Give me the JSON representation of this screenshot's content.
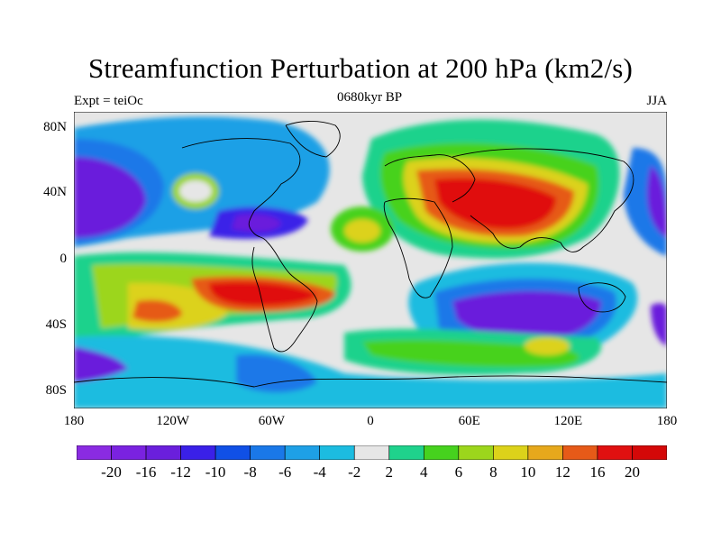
{
  "title": "Streamfunction Perturbation at 200 hPa (km2/s)",
  "subtitle_left": "Expt = teiOc",
  "subtitle_center": "0680kyr BP",
  "subtitle_right": "JJA",
  "lat_labels": [
    "80N",
    "40N",
    "0",
    "40S",
    "80S"
  ],
  "lon_labels": [
    "180",
    "120W",
    "60W",
    "0",
    "60E",
    "120E",
    "180"
  ],
  "colorbar": {
    "labels": [
      "-20",
      "-16",
      "-12",
      "-10",
      "-8",
      "-6",
      "-4",
      "-2",
      "2",
      "4",
      "6",
      "8",
      "10",
      "12",
      "16",
      "20"
    ],
    "colors": [
      "#8a2be2",
      "#7a22e0",
      "#6a1fdc",
      "#3a20e8",
      "#1050e6",
      "#1a78e8",
      "#1ea0e6",
      "#1cbce0",
      "#e6e6e6",
      "#1fd28c",
      "#46d21e",
      "#9cd61c",
      "#dcd21a",
      "#e6a81c",
      "#e65a18",
      "#e01010"
    ]
  }
}
